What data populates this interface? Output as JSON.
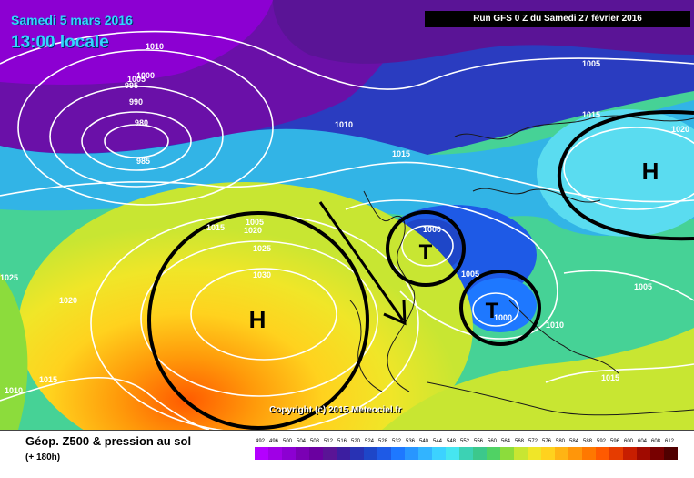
{
  "header": {
    "date_title": "Samedi 5 mars 2016",
    "time_title": "13:00 locale",
    "run_banner": "Run GFS 0 Z du Samedi 27 février 2016"
  },
  "map": {
    "copyright": "Copyright (c) 2015 Meteociel.fr",
    "pressure_centers": [
      {
        "label": "H"
      },
      {
        "label": "H"
      },
      {
        "label": "T"
      },
      {
        "label": "T"
      }
    ],
    "isobar_labels": [
      "1010",
      "1005",
      "1000",
      "995",
      "990",
      "980",
      "985",
      "1010",
      "1015",
      "1005",
      "1015",
      "1020",
      "1015",
      "1020",
      "1025",
      "1030",
      "1025",
      "1020",
      "1015",
      "1010",
      "1000",
      "1005",
      "1000",
      "1010",
      "1005",
      "1015",
      "1005"
    ]
  },
  "legend": {
    "title": "Géop. Z500 & pression au sol",
    "subtitle": "(+ 180h)",
    "scale_values": [
      "492",
      "496",
      "500",
      "504",
      "508",
      "512",
      "516",
      "520",
      "524",
      "528",
      "532",
      "536",
      "540",
      "544",
      "548",
      "552",
      "556",
      "560",
      "564",
      "568",
      "572",
      "576",
      "580",
      "584",
      "588",
      "592",
      "596",
      "600",
      "604",
      "608",
      "612"
    ],
    "scale_colors": [
      "#b400ff",
      "#a000e6",
      "#8c00d2",
      "#7a00b4",
      "#6a00a0",
      "#5a1496",
      "#3c1ea0",
      "#2832b4",
      "#1e46c8",
      "#1e5ae6",
      "#1e78ff",
      "#2896ff",
      "#32b4ff",
      "#3cd2ff",
      "#46e6f0",
      "#3cd2b4",
      "#3cc88c",
      "#50d264",
      "#8cdc3c",
      "#c8e632",
      "#f0e628",
      "#ffd21e",
      "#ffb414",
      "#ff960a",
      "#ff7800",
      "#ff5a00",
      "#e63c00",
      "#c81e00",
      "#a00a00",
      "#780000",
      "#500000"
    ]
  }
}
